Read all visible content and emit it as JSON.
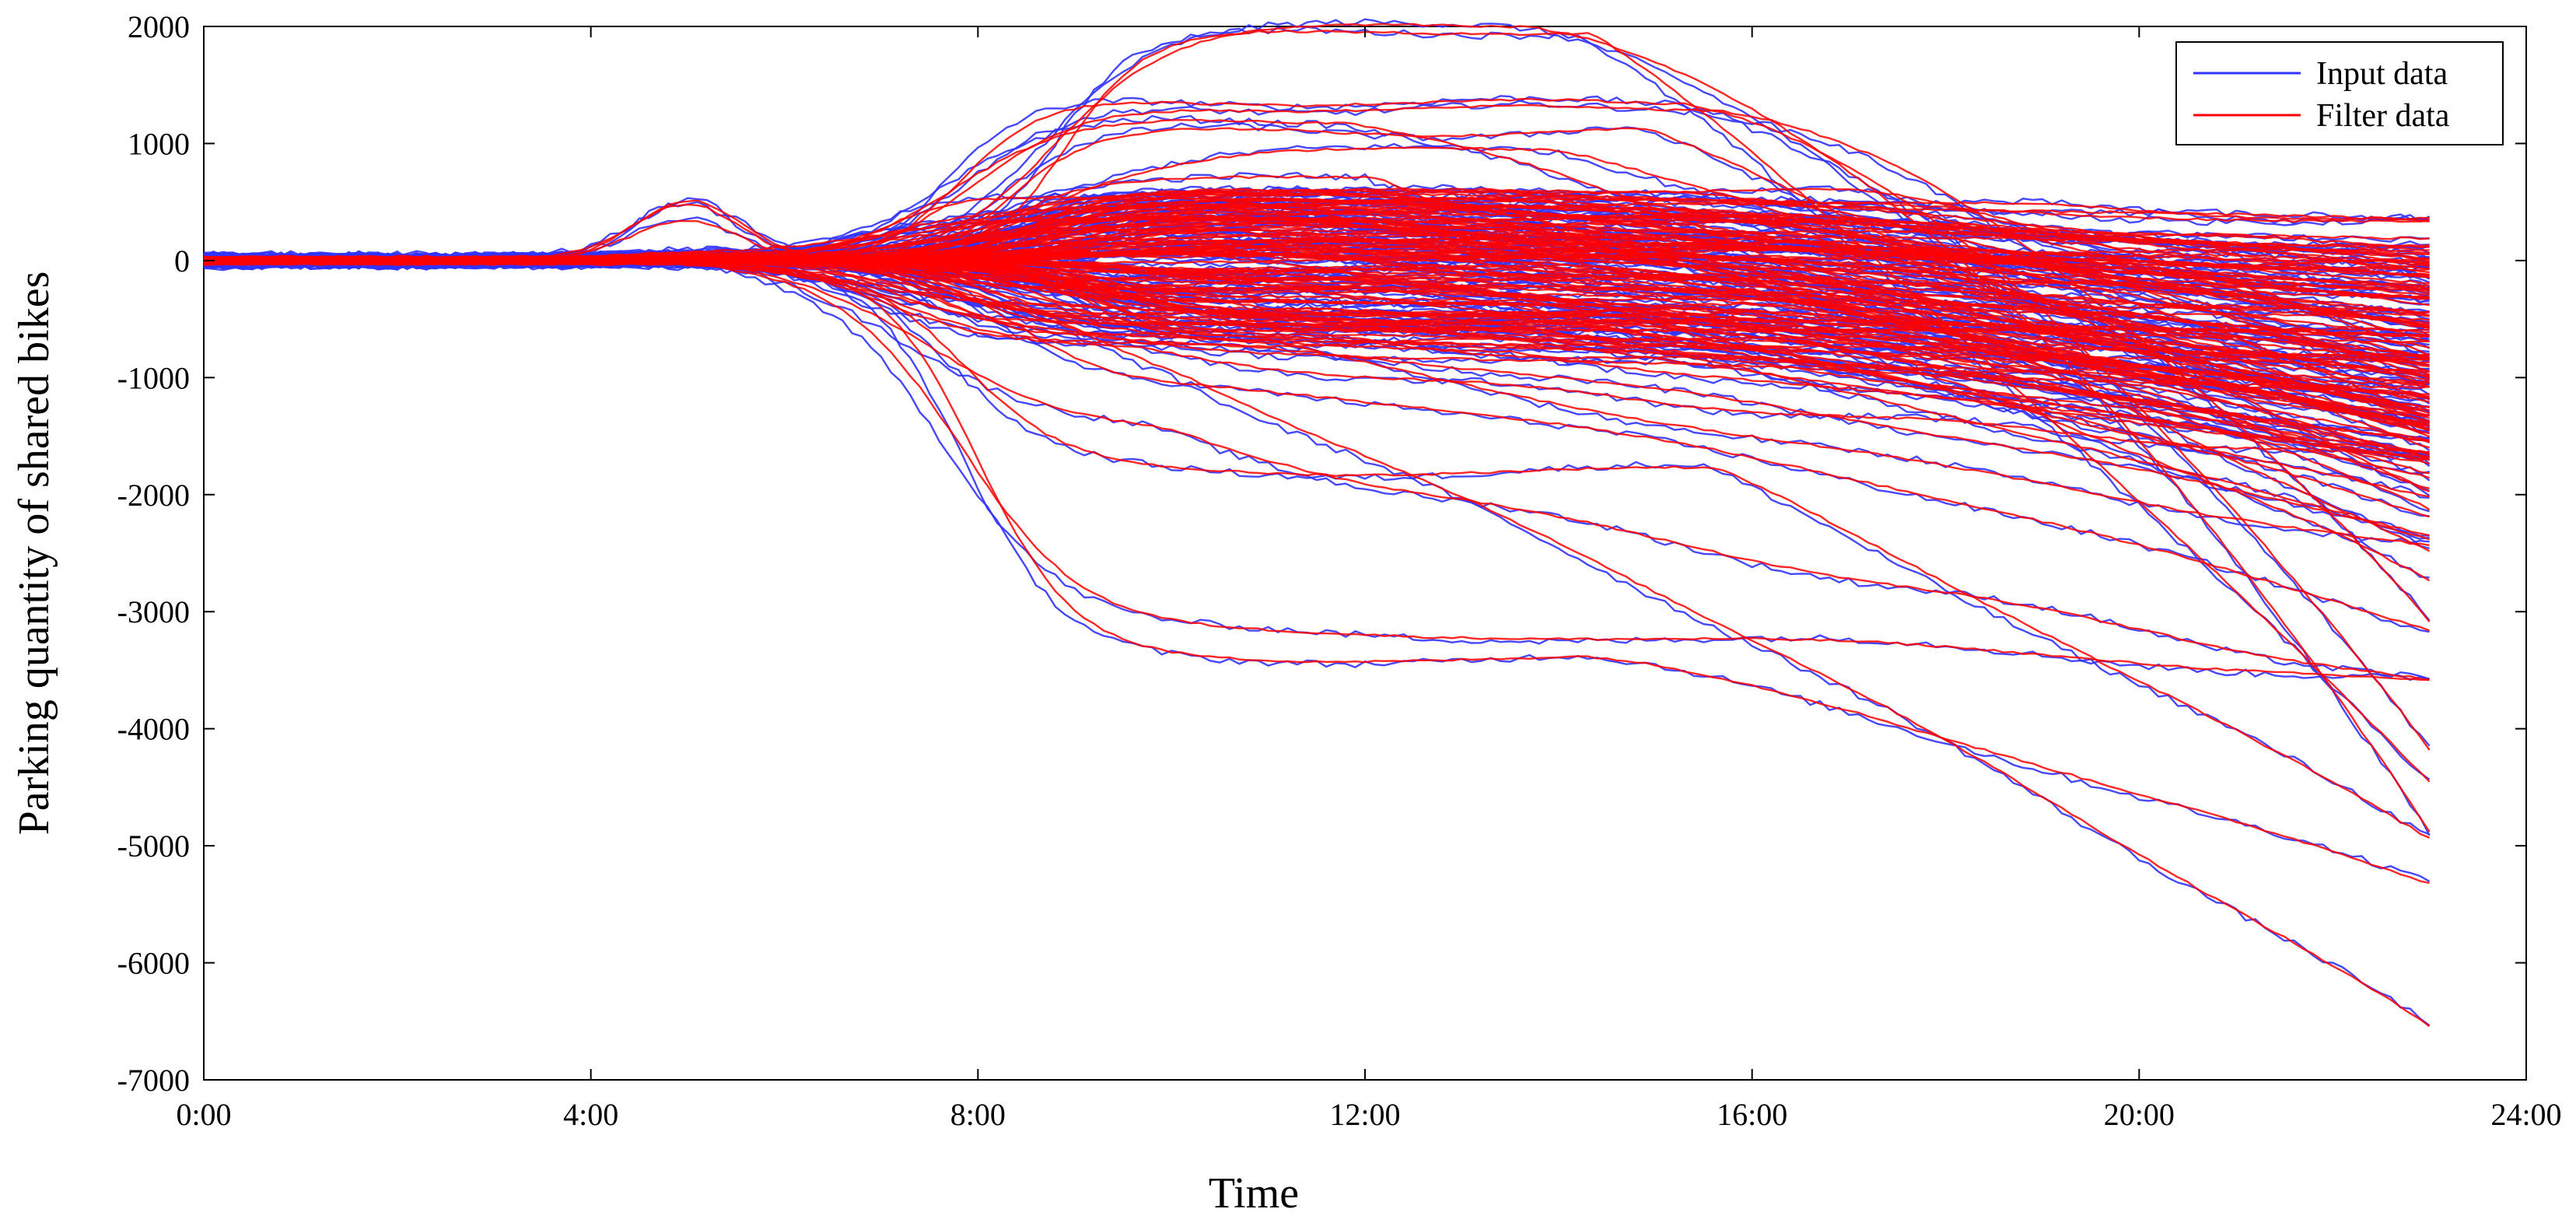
{
  "chart_data": {
    "type": "line",
    "title": "",
    "xlabel": "Time",
    "ylabel": "Parking quantity of shared bikes",
    "x_ticks": [
      "0:00",
      "4:00",
      "8:00",
      "12:00",
      "16:00",
      "20:00",
      "24:00"
    ],
    "x_tick_values_hours": [
      0,
      4,
      8,
      12,
      16,
      20,
      24
    ],
    "y_ticks": [
      "2000",
      "1000",
      "0",
      "-1000",
      "-2000",
      "-3000",
      "-4000",
      "-5000",
      "-6000",
      "-7000"
    ],
    "y_tick_values": [
      2000,
      1000,
      0,
      -1000,
      -2000,
      -3000,
      -4000,
      -5000,
      -6000,
      -7000
    ],
    "xlim_hours": [
      0,
      24
    ],
    "ylim": [
      -7000,
      2000
    ],
    "grid": false,
    "legend_position": "top-right",
    "series": [
      {
        "name": "Input data",
        "color": "#3333ff"
      },
      {
        "name": "Filter data",
        "color": "#ff0000"
      }
    ],
    "curves": [
      {
        "peak": 2000,
        "end": -4850
      },
      {
        "peak": 1950,
        "end": -4450
      },
      {
        "peak": 1350,
        "end": -4200
      },
      {
        "peak": 1300,
        "end": -3100
      },
      {
        "peak": 1200,
        "end": -2500
      },
      {
        "peak": 1100,
        "end": -1950
      },
      {
        "peak": 950,
        "end": -1600
      },
      {
        "peak": 700,
        "end": -1400
      },
      {
        "peak": 600,
        "end": -1200
      },
      {
        "peak": 500,
        "end": -1000
      },
      {
        "peak": 400,
        "end": -800
      },
      {
        "peak": 300,
        "end": -600
      },
      {
        "peak": 200,
        "end": -400
      },
      {
        "peak": 100,
        "end": -200
      },
      {
        "peak": 50,
        "end": -50
      },
      {
        "peak": -100,
        "end": -900
      },
      {
        "peak": -200,
        "end": -1500
      },
      {
        "peak": -400,
        "end": -2400
      },
      {
        "peak": -700,
        "end": -2750
      },
      {
        "peak": -1100,
        "end": -3150
      },
      {
        "peak": -1500,
        "end": -3600
      },
      {
        "peak": -1800,
        "end": -4950
      },
      {
        "peak": -3200,
        "end": -3600
      },
      {
        "peak": -3400,
        "end": -5350
      },
      {
        "peak": -1200,
        "end": -6550
      }
    ]
  }
}
